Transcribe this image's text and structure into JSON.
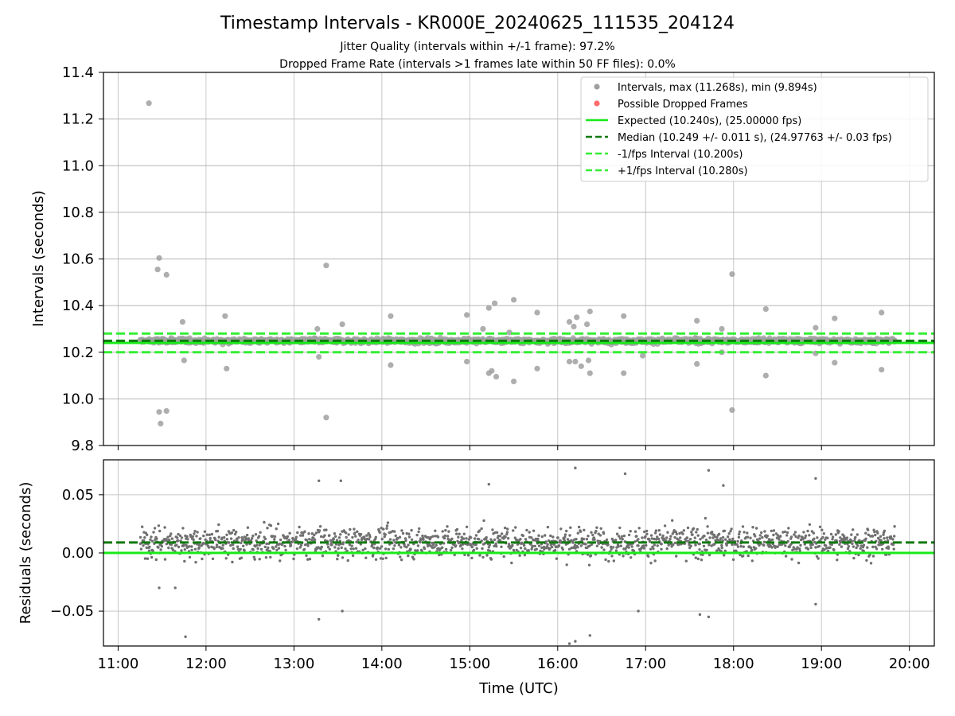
{
  "figure": {
    "title": "Timestamp Intervals - KR000E_20240625_111535_204124",
    "subtitle_1": "Jitter Quality (intervals within +/-1 frame): 97.2%",
    "subtitle_2": "Dropped Frame Rate (intervals >1 frames late within 50 FF files): 0.0%"
  },
  "chart_data": [
    {
      "type": "scatter",
      "panel": "top",
      "xlabel": "",
      "ylabel": "Intervals (seconds)",
      "xlim": [
        "10:50",
        "20:17"
      ],
      "ylim": [
        9.8,
        11.4
      ],
      "yticks": [
        9.8,
        10.0,
        10.2,
        10.4,
        10.6,
        10.8,
        11.0,
        11.2,
        11.4
      ],
      "ytick_labels": [
        "9.8",
        "10.0",
        "10.2",
        "10.4",
        "10.6",
        "10.8",
        "11.0",
        "11.2",
        "11.4"
      ],
      "grid": true,
      "legend_position": "top-right",
      "point_range": {
        "x_start": "11:15",
        "x_end": "19:50",
        "median": 10.249,
        "spread": 0.011
      },
      "series": [
        {
          "name": "Intervals, max (11.268s), min (9.894s)",
          "kind": "points",
          "color": "#a0a0a0",
          "outliers": [
            [
              "11:21",
              11.268
            ],
            [
              "11:28",
              10.604
            ],
            [
              "11:27",
              10.555
            ],
            [
              "11:33",
              10.532
            ],
            [
              "11:28",
              9.944
            ],
            [
              "11:29",
              9.894
            ],
            [
              "11:33",
              9.948
            ],
            [
              "11:44",
              10.33
            ],
            [
              "11:45",
              10.165
            ],
            [
              "12:13",
              10.355
            ],
            [
              "12:14",
              10.13
            ],
            [
              "13:16",
              10.3
            ],
            [
              "13:17",
              10.18
            ],
            [
              "13:22",
              10.572
            ],
            [
              "13:22",
              9.92
            ],
            [
              "13:33",
              10.32
            ],
            [
              "14:06",
              10.355
            ],
            [
              "14:06",
              10.145
            ],
            [
              "14:58",
              10.36
            ],
            [
              "14:58",
              10.16
            ],
            [
              "15:09",
              10.3
            ],
            [
              "15:13",
              10.39
            ],
            [
              "15:13",
              10.11
            ],
            [
              "15:17",
              10.41
            ],
            [
              "15:15",
              10.12
            ],
            [
              "15:18",
              10.095
            ],
            [
              "15:23",
              10.24
            ],
            [
              "15:27",
              10.285
            ],
            [
              "15:30",
              10.425
            ],
            [
              "15:30",
              10.075
            ],
            [
              "15:46",
              10.37
            ],
            [
              "15:46",
              10.13
            ],
            [
              "16:08",
              10.33
            ],
            [
              "16:08",
              10.16
            ],
            [
              "16:11",
              10.31
            ],
            [
              "16:12",
              10.16
            ],
            [
              "16:13",
              10.35
            ],
            [
              "16:16",
              10.14
            ],
            [
              "16:20",
              10.32
            ],
            [
              "16:21",
              10.165
            ],
            [
              "16:22",
              10.375
            ],
            [
              "16:22",
              10.11
            ],
            [
              "16:45",
              10.355
            ],
            [
              "16:45",
              10.11
            ],
            [
              "16:58",
              10.185
            ],
            [
              "17:35",
              10.335
            ],
            [
              "17:35",
              10.15
            ],
            [
              "17:52",
              10.3
            ],
            [
              "17:52",
              10.2
            ],
            [
              "17:59",
              10.535
            ],
            [
              "17:59",
              9.952
            ],
            [
              "18:22",
              10.385
            ],
            [
              "18:22",
              10.1
            ],
            [
              "18:56",
              10.305
            ],
            [
              "18:56",
              10.195
            ],
            [
              "19:09",
              10.345
            ],
            [
              "19:09",
              10.155
            ],
            [
              "19:41",
              10.37
            ],
            [
              "19:41",
              10.125
            ]
          ]
        },
        {
          "name": "Possible Dropped Frames",
          "kind": "points",
          "color": "#ff6b6b",
          "values": []
        },
        {
          "name": "Expected (10.240s), (25.00000 fps)",
          "kind": "hline",
          "y": 10.24,
          "color": "#19ea19",
          "style": "solid"
        },
        {
          "name": "Median (10.249 +/- 0.011 s), (24.97763 +/- 0.03 fps)",
          "kind": "hline",
          "y": 10.249,
          "color": "#0f7a0f",
          "style": "dashed"
        },
        {
          "name": "-1/fps Interval (10.200s)",
          "kind": "hline",
          "y": 10.2,
          "color": "#33ee33",
          "style": "dashed"
        },
        {
          "name": "+1/fps Interval (10.280s)",
          "kind": "hline",
          "y": 10.28,
          "color": "#33ee33",
          "style": "dashed"
        }
      ]
    },
    {
      "type": "scatter",
      "panel": "bottom",
      "xlabel": "Time (UTC)",
      "ylabel": "Residuals (seconds)",
      "xlim": [
        "10:50",
        "20:17"
      ],
      "ylim": [
        -0.08,
        0.08
      ],
      "xticks": [
        "11:00",
        "12:00",
        "13:00",
        "14:00",
        "15:00",
        "16:00",
        "17:00",
        "18:00",
        "19:00",
        "20:00"
      ],
      "yticks": [
        -0.05,
        0.0,
        0.05
      ],
      "ytick_labels": [
        "−0.05",
        "0.00",
        "0.05"
      ],
      "grid": true,
      "point_range": {
        "x_start": "11:15",
        "x_end": "19:50",
        "median": 0.009,
        "spread": 0.014
      },
      "series": [
        {
          "name": "",
          "kind": "points",
          "color": "#707070",
          "outliers": [
            [
              "11:46",
              -0.072
            ],
            [
              "13:17",
              0.062
            ],
            [
              "13:17",
              -0.057
            ],
            [
              "13:32",
              0.062
            ],
            [
              "13:33",
              -0.05
            ],
            [
              "15:13",
              0.059
            ],
            [
              "16:08",
              -0.078
            ],
            [
              "16:12",
              -0.076
            ],
            [
              "16:12",
              0.073
            ],
            [
              "16:22",
              -0.071
            ],
            [
              "16:46",
              0.068
            ],
            [
              "16:55",
              -0.05
            ],
            [
              "17:37",
              -0.053
            ],
            [
              "17:43",
              -0.055
            ],
            [
              "17:43",
              0.071
            ],
            [
              "17:53",
              0.058
            ],
            [
              "18:56",
              0.064
            ],
            [
              "18:56",
              -0.044
            ],
            [
              "11:28",
              -0.03
            ],
            [
              "11:39",
              -0.03
            ]
          ]
        },
        {
          "name": "",
          "kind": "hline",
          "y": 0.0,
          "color": "#19ea19",
          "style": "solid"
        },
        {
          "name": "",
          "kind": "hline",
          "y": 0.009,
          "color": "#0f7a0f",
          "style": "dashed"
        }
      ]
    }
  ]
}
